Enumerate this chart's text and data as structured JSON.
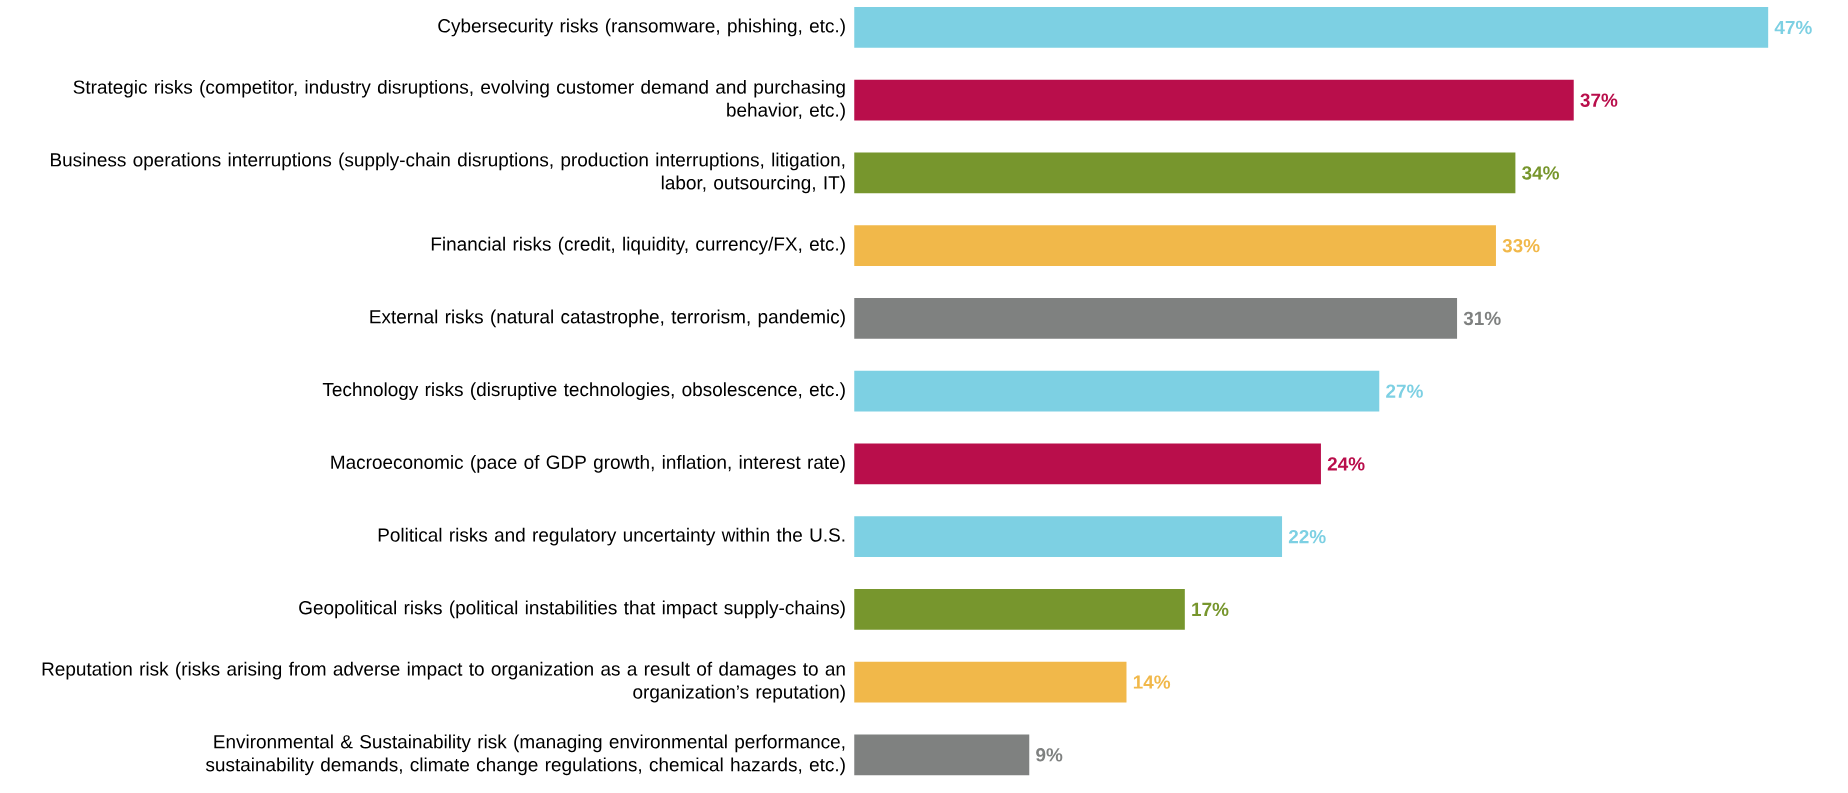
{
  "chart_data": {
    "type": "bar",
    "orientation": "horizontal",
    "categories": [
      "Cybersecurity risks (ransomware, phishing, etc.)",
      "Strategic risks (competitor, industry disruptions, evolving customer demand and purchasing behavior, etc.)",
      "Business operations interruptions (supply-chain disruptions, production interruptions, litigation, labor, outsourcing, IT)",
      "Financial risks (credit, liquidity, currency/FX, etc.)",
      "External risks (natural catastrophe, terrorism, pandemic)",
      "Technology risks (disruptive technologies, obsolescence, etc.)",
      "Macroeconomic (pace of GDP growth, inflation, interest rate)",
      "Political risks and regulatory uncertainty within the U.S.",
      "Geopolitical risks (political instabilities that impact supply-chains)",
      "Reputation risk (risks arising from adverse impact to organization as a result of damages to an organization’s reputation)",
      "Environmental & Sustainability risk (managing environmental performance, sustainability demands, climate change regulations, chemical hazards, etc.)"
    ],
    "values": [
      47,
      37,
      34,
      33,
      31,
      27,
      24,
      22,
      17,
      14,
      9
    ],
    "value_labels": [
      "47%",
      "37%",
      "34%",
      "33%",
      "31%",
      "27%",
      "24%",
      "22%",
      "17%",
      "14%",
      "9%"
    ],
    "colors": [
      "#7dd0e3",
      "#b90e4b",
      "#77962d",
      "#f1b84a",
      "#7f8180",
      "#7dd0e3",
      "#b90e4b",
      "#7dd0e3",
      "#77962d",
      "#f1b84a",
      "#7f8180"
    ]
  }
}
